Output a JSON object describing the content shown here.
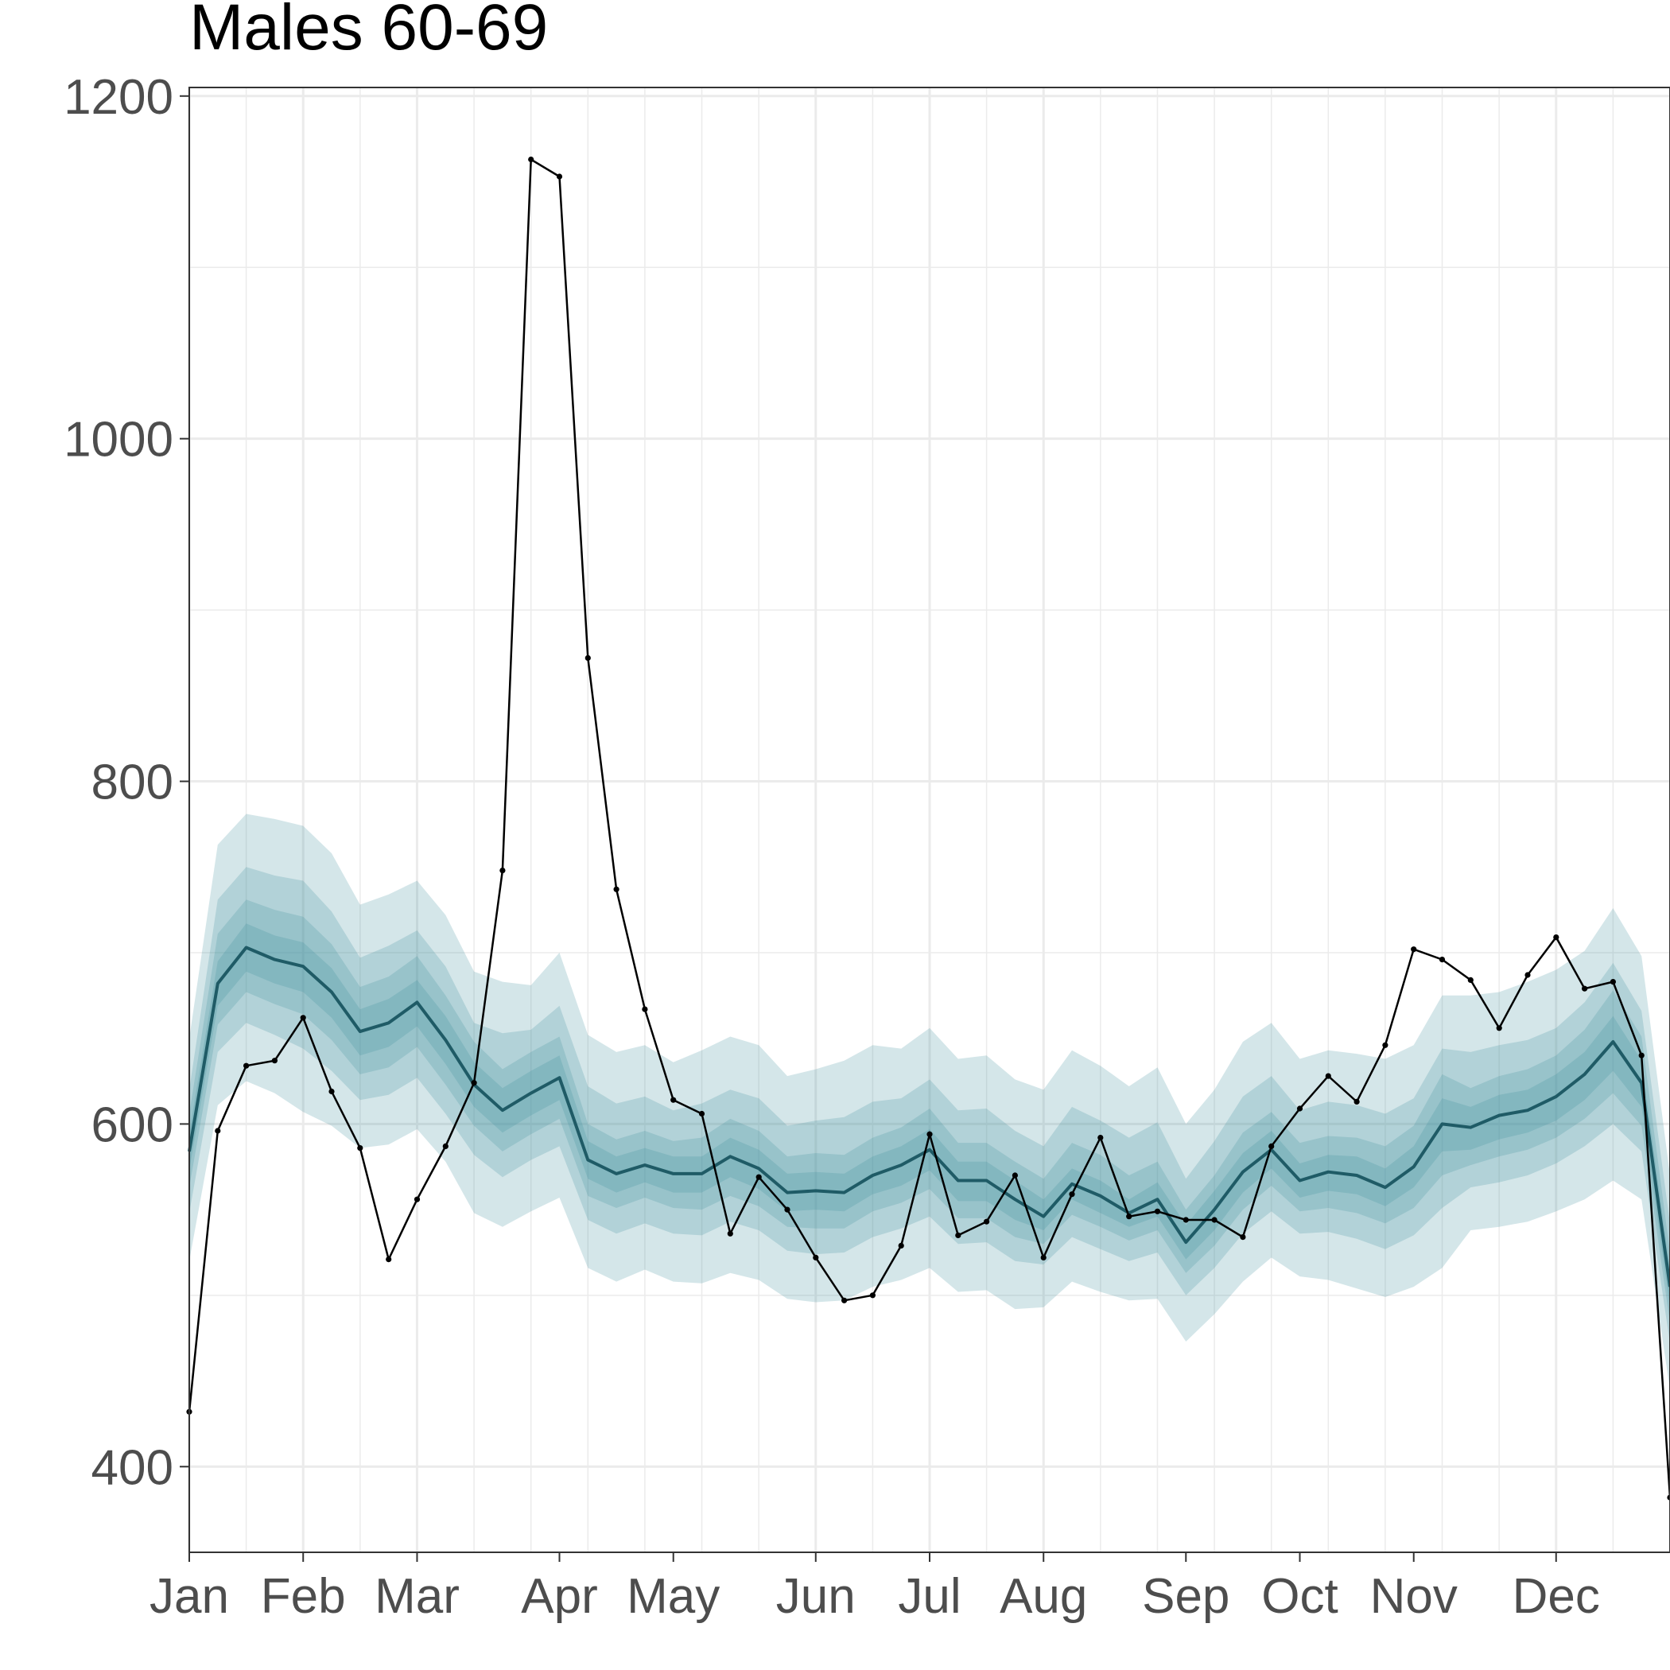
{
  "chart_data": {
    "type": "line",
    "title": "Males 60-69",
    "xlabel": "",
    "ylabel": "",
    "x_tick_labels": [
      "Jan",
      "Feb",
      "Mar",
      "Apr",
      "May",
      "Jun",
      "Jul",
      "Aug",
      "Sep",
      "Oct",
      "Nov",
      "Dec"
    ],
    "x_tick_weeks": [
      0,
      4,
      8,
      13,
      17,
      22,
      26,
      30,
      35,
      39,
      43,
      48
    ],
    "xlim": [
      0,
      52
    ],
    "y_ticks": [
      400,
      600,
      800,
      1000,
      1200
    ],
    "ylim": [
      350,
      1205
    ],
    "grid": true,
    "legend": "none",
    "colors": {
      "band": "#3c8f9b",
      "median": "#1f5b66",
      "observed": "#000000",
      "grid": "#ebebeb"
    },
    "forecast": {
      "median": [
        584,
        682,
        703,
        696,
        692,
        677,
        654,
        659,
        671,
        649,
        623,
        608,
        618,
        627,
        579,
        571,
        576,
        571,
        571,
        581,
        574,
        560,
        561,
        560,
        570,
        576,
        585,
        567,
        567,
        556,
        546,
        565,
        558,
        548,
        556,
        531,
        550,
        572,
        585,
        567,
        572,
        570,
        563,
        575,
        600,
        598,
        605,
        608,
        616,
        629,
        648,
        624,
        505
      ],
      "bands": [
        {
          "lower": [
            520,
            611,
            625,
            618,
            607,
            599,
            586,
            588,
            597,
            578,
            548,
            540,
            549,
            557,
            516,
            508,
            515,
            508,
            507,
            513,
            509,
            498,
            496,
            497,
            505,
            509,
            516,
            502,
            503,
            492,
            493,
            508,
            502,
            497,
            498,
            473,
            489,
            508,
            522,
            511,
            509,
            504,
            499,
            505,
            516,
            538,
            540,
            543,
            549,
            556,
            567,
            556,
            445
          ],
          "upper": [
            650,
            763,
            781,
            778,
            774,
            758,
            728,
            734,
            742,
            722,
            689,
            683,
            681,
            700,
            652,
            642,
            646,
            636,
            643,
            651,
            646,
            628,
            632,
            637,
            646,
            644,
            656,
            638,
            640,
            626,
            620,
            643,
            634,
            622,
            633,
            600,
            620,
            648,
            659,
            638,
            643,
            641,
            638,
            646,
            675,
            675,
            677,
            683,
            690,
            701,
            726,
            698,
            570
          ]
        },
        {
          "lower": [
            548,
            642,
            659,
            652,
            644,
            631,
            614,
            617,
            627,
            606,
            582,
            569,
            579,
            587,
            544,
            536,
            542,
            536,
            535,
            543,
            538,
            526,
            524,
            525,
            534,
            539,
            546,
            530,
            531,
            520,
            518,
            534,
            527,
            520,
            525,
            500,
            516,
            536,
            549,
            536,
            537,
            533,
            527,
            535,
            551,
            563,
            566,
            570,
            577,
            587,
            600,
            584,
            472
          ],
          "upper": [
            620,
            731,
            750,
            745,
            742,
            724,
            697,
            704,
            713,
            692,
            659,
            653,
            655,
            669,
            622,
            612,
            616,
            608,
            612,
            620,
            615,
            599,
            602,
            604,
            613,
            615,
            626,
            608,
            609,
            596,
            587,
            610,
            602,
            592,
            601,
            568,
            590,
            616,
            628,
            608,
            613,
            611,
            606,
            615,
            644,
            642,
            646,
            649,
            656,
            671,
            694,
            666,
            542
          ]
        },
        {
          "lower": [
            563,
            658,
            677,
            670,
            664,
            649,
            629,
            633,
            645,
            623,
            599,
            584,
            594,
            603,
            558,
            551,
            557,
            551,
            550,
            558,
            552,
            540,
            539,
            539,
            549,
            554,
            562,
            545,
            545,
            534,
            530,
            547,
            540,
            532,
            538,
            513,
            529,
            550,
            564,
            549,
            551,
            548,
            542,
            551,
            570,
            576,
            581,
            585,
            592,
            603,
            618,
            599,
            484
          ],
          "upper": [
            606,
            711,
            731,
            725,
            721,
            705,
            680,
            686,
            698,
            675,
            648,
            632,
            642,
            651,
            600,
            591,
            596,
            590,
            592,
            603,
            596,
            581,
            583,
            582,
            592,
            598,
            609,
            589,
            589,
            578,
            568,
            589,
            582,
            570,
            578,
            550,
            570,
            595,
            607,
            589,
            593,
            592,
            587,
            599,
            629,
            621,
            628,
            632,
            640,
            655,
            678,
            651,
            525
          ]
        },
        {
          "lower": [
            573,
            669,
            689,
            682,
            677,
            662,
            640,
            645,
            657,
            635,
            610,
            595,
            605,
            614,
            568,
            560,
            566,
            560,
            560,
            569,
            562,
            549,
            550,
            549,
            559,
            564,
            573,
            555,
            555,
            544,
            538,
            556,
            548,
            540,
            546,
            521,
            538,
            560,
            574,
            557,
            561,
            559,
            552,
            563,
            584,
            585,
            591,
            595,
            602,
            614,
            631,
            610,
            493
          ],
          "upper": [
            595,
            695,
            717,
            710,
            706,
            691,
            667,
            673,
            684,
            663,
            636,
            621,
            631,
            640,
            590,
            581,
            586,
            581,
            581,
            592,
            585,
            571,
            572,
            571,
            581,
            587,
            597,
            578,
            578,
            567,
            556,
            574,
            567,
            556,
            566,
            541,
            561,
            583,
            596,
            577,
            582,
            581,
            574,
            587,
            615,
            610,
            617,
            620,
            629,
            642,
            663,
            637,
            515
          ]
        }
      ]
    },
    "observed": [
      432,
      596,
      634,
      637,
      662,
      619,
      586,
      521,
      556,
      587,
      624,
      748,
      1163,
      1153,
      872,
      737,
      667,
      614,
      606,
      536,
      569,
      550,
      522,
      497,
      500,
      529,
      594,
      535,
      543,
      570,
      522,
      559,
      592,
      546,
      549,
      544,
      544,
      534,
      587,
      609,
      628,
      613,
      646,
      702,
      696,
      684,
      656,
      687,
      709,
      679,
      683,
      640,
      382
    ]
  }
}
